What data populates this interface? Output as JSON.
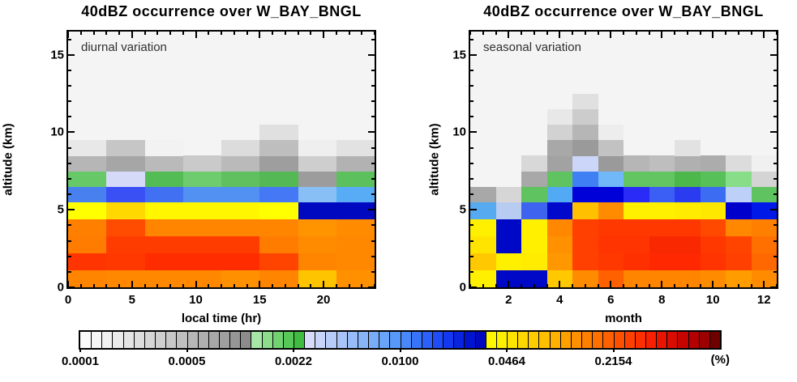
{
  "chart_data": [
    {
      "type": "heatmap",
      "title": "40dBZ occurrence over W_BAY_BNGL",
      "annotation": "diurnal variation",
      "xlabel": "local time (hr)",
      "ylabel": "altitude (km)",
      "xlim": [
        0,
        24
      ],
      "ylim": [
        0,
        16.5
      ],
      "background": "#f4f4f4",
      "ylabel_offset": 72,
      "x_bins": [
        0,
        3,
        6,
        9,
        12,
        15,
        18,
        21,
        24
      ],
      "x_ticks": {
        "major": [
          0,
          5,
          10,
          15,
          20
        ],
        "labels": [
          "0",
          "5",
          "10",
          "15",
          "20"
        ],
        "minor_step": 1,
        "range": [
          0,
          24
        ]
      },
      "y_ticks": {
        "major": [
          0,
          5,
          10,
          15
        ],
        "labels": [
          "0",
          "5",
          "10",
          "15"
        ],
        "minor_step": 1,
        "range": [
          0,
          16
        ]
      },
      "rows": [
        {
          "alt": [
            0,
            1.1
          ],
          "cells": [
            "#ff8400",
            "#ff8800",
            "#ff8800",
            "#ff8800",
            "#ff9000",
            "#ff8400",
            "#ffc400",
            "#ff9000"
          ]
        },
        {
          "alt": [
            1.1,
            2.2
          ],
          "cells": [
            "#ff3400",
            "#ff3800",
            "#ff2c00",
            "#ff2c00",
            "#ff2c00",
            "#ff4400",
            "#ff8400",
            "#ff8800"
          ]
        },
        {
          "alt": [
            2.2,
            3.3
          ],
          "cells": [
            "#ff7c00",
            "#ff3c00",
            "#ff3c00",
            "#ff3c00",
            "#ff3c00",
            "#ff7c00",
            "#ff8c00",
            "#ff8800"
          ]
        },
        {
          "alt": [
            3.3,
            4.4
          ],
          "cells": [
            "#ff8000",
            "#ff4c00",
            "#ff8400",
            "#ff8400",
            "#ff8400",
            "#ff8400",
            "#ff9400",
            "#ff8c00"
          ]
        },
        {
          "alt": [
            4.4,
            5.5
          ],
          "cells": [
            "#ffff00",
            "#ffd800",
            "#fff600",
            "#fff600",
            "#fff600",
            "#ffff00",
            "#0008c0",
            "#0008c0"
          ]
        },
        {
          "alt": [
            5.5,
            6.5
          ],
          "cells": [
            "#4880f0",
            "#3a50f5",
            "#4270f2",
            "#5290f2",
            "#5290f2",
            "#4478f5",
            "#88c0f5",
            "#58acf5"
          ]
        },
        {
          "alt": [
            6.5,
            7.5
          ],
          "cells": [
            "#66c866",
            "#d4daf8",
            "#54bc54",
            "#6ecc6e",
            "#60c060",
            "#54b854",
            "#9c9c9c",
            "#5cc05c"
          ]
        },
        {
          "alt": [
            7.5,
            8.5
          ],
          "cells": [
            "#b6b6b6",
            "#a6a6a6",
            "#bababa",
            "#cacaca",
            "#bababa",
            "#9e9e9e",
            "#cecece",
            "#b2b2b2"
          ]
        },
        {
          "alt": [
            8.5,
            9.5
          ],
          "cells": [
            "#e8e8e8",
            "#c6c6c6",
            "#f2f2f2",
            null,
            "#dcdcdc",
            "#bebebe",
            "#efefef",
            "#e2e2e2"
          ]
        },
        {
          "alt": [
            9.5,
            10.5
          ],
          "cells": [
            null,
            null,
            null,
            null,
            null,
            "#e0e0e0",
            null,
            null
          ]
        }
      ]
    },
    {
      "type": "heatmap",
      "title": "40dBZ occurrence over W_BAY_BNGL",
      "annotation": "seasonal variation",
      "xlabel": "month",
      "ylabel": "altitude (km)",
      "xlim": [
        0.5,
        12.5
      ],
      "ylim": [
        0,
        16.5
      ],
      "background": "#f4f4f4",
      "ylabel_offset": 42,
      "x_bins": [
        0.5,
        1.5,
        2.5,
        3.5,
        4.5,
        5.5,
        6.5,
        7.5,
        8.5,
        9.5,
        10.5,
        11.5,
        12.5
      ],
      "x_ticks": {
        "major": [
          2,
          4,
          6,
          8,
          10,
          12
        ],
        "labels": [
          "2",
          "4",
          "6",
          "8",
          "10",
          "12"
        ],
        "minor_step": 0.5,
        "range": [
          0.5,
          12.5
        ]
      },
      "y_ticks": {
        "major": [
          0,
          5,
          10,
          15
        ],
        "labels": [
          "0",
          "5",
          "10",
          "15"
        ],
        "minor_step": 1,
        "range": [
          0,
          16
        ]
      },
      "rows": [
        {
          "alt": [
            0,
            1.1
          ],
          "cells": [
            "#fff000",
            "#0008c8",
            "#0008c8",
            "#ffc800",
            "#ff8c00",
            "#ff6000",
            "#ff8400",
            "#ff8400",
            "#ff8400",
            "#ff8c00",
            "#ff9c00",
            "#ff8c00"
          ]
        },
        {
          "alt": [
            1.1,
            2.2
          ],
          "cells": [
            "#ffc800",
            "#fff000",
            "#ffec00",
            "#ff9800",
            "#ff4000",
            "#ff3800",
            "#ff3000",
            "#ff2800",
            "#ff2800",
            "#ff3400",
            "#ff4000",
            "#ff6800"
          ]
        },
        {
          "alt": [
            2.2,
            3.3
          ],
          "cells": [
            "#ffe400",
            "#0008c8",
            "#fff000",
            "#ff9000",
            "#ff4000",
            "#ff3400",
            "#ff3400",
            "#fa2800",
            "#fa2800",
            "#ff3800",
            "#ff4400",
            "#ff7000"
          ]
        },
        {
          "alt": [
            3.3,
            4.4
          ],
          "cells": [
            "#fff000",
            "#0008c8",
            "#fff000",
            "#ff8800",
            "#ff4000",
            "#ff3800",
            "#ff3800",
            "#ff3800",
            "#ff3800",
            "#ff4800",
            "#ff8800",
            "#ff8000"
          ]
        },
        {
          "alt": [
            4.4,
            5.5
          ],
          "cells": [
            "#55aaf0",
            "#b8ccf2",
            "#3e63ee",
            "#0008cc",
            "#ffc000",
            "#ff8c00",
            "#fff000",
            "#fff000",
            "#ffec00",
            "#ffe800",
            "#0000cc",
            "#0018e8"
          ]
        },
        {
          "alt": [
            5.5,
            6.5
          ],
          "cells": [
            "#a8a8a8",
            "#d6d6d6",
            "#5fc35f",
            "#52aaf5",
            "#0000d8",
            "#0000d8",
            "#2b2bf8",
            "#3b5ef5",
            "#2b3bf0",
            "#3c6cf2",
            "#bcd0f8",
            "#5fc35f"
          ]
        },
        {
          "alt": [
            6.5,
            7.5
          ],
          "cells": [
            null,
            null,
            "#a8a8a8",
            "#5fc35f",
            "#4080f5",
            "#70b8f8",
            "#62c562",
            "#62c562",
            "#4cb84c",
            "#58c058",
            "#88dd88",
            "#d4d4d4"
          ]
        },
        {
          "alt": [
            7.5,
            8.5
          ],
          "cells": [
            null,
            null,
            "#d8d8d8",
            "#a2a2a2",
            "#ccd6f8",
            "#9a9a9a",
            "#b6b6b6",
            "#bebebe",
            "#b0b0b0",
            "#acacac",
            "#dcdcdc",
            "#f0f0f0"
          ]
        },
        {
          "alt": [
            8.5,
            9.5
          ],
          "cells": [
            null,
            null,
            null,
            "#a8a8a8",
            "#9a9a9a",
            "#c2c2c2",
            null,
            null,
            "#e2e2e2",
            null,
            null,
            null
          ]
        },
        {
          "alt": [
            9.5,
            10.5
          ],
          "cells": [
            null,
            null,
            null,
            "#d2d2d2",
            "#b6b6b6",
            "#ededed",
            null,
            null,
            null,
            null,
            null,
            null
          ]
        },
        {
          "alt": [
            10.5,
            11.5
          ],
          "cells": [
            null,
            null,
            null,
            "#e8e8e8",
            "#cccccc",
            null,
            null,
            null,
            null,
            null,
            null,
            null
          ]
        },
        {
          "alt": [
            11.5,
            12.5
          ],
          "cells": [
            null,
            null,
            null,
            null,
            "#e0e0e0",
            null,
            null,
            null,
            null,
            null,
            null,
            null
          ]
        }
      ]
    },
    {
      "type": "colorbar",
      "orientation": "horizontal",
      "scale": "log",
      "range": [
        0.0001,
        1.0
      ],
      "tick_labels": [
        "0.0001",
        "0.0005",
        "0.0022",
        "0.0100",
        "0.0464",
        "0.2154"
      ],
      "unit_label": "(%)",
      "cells": [
        "#fbfbfb",
        "#f6f6f6",
        "#f1f1f1",
        "#ebebeb",
        "#e4e4e4",
        "#dddddd",
        "#d6d6d6",
        "#cfcfcf",
        "#c7c7c7",
        "#bfbfbf",
        "#b7b7b7",
        "#afafaf",
        "#a7a7a7",
        "#9f9f9f",
        "#969696",
        "#8c8c8c",
        "#a6e6a6",
        "#8cdc8c",
        "#72d272",
        "#58c858",
        "#40bc40",
        "#d8dcfa",
        "#c8d4fa",
        "#b8ccfa",
        "#a8c4f8",
        "#98bcf8",
        "#88b4f8",
        "#78acf8",
        "#68a4f8",
        "#5898f8",
        "#4888f8",
        "#3874f8",
        "#2c60f8",
        "#204cf8",
        "#1438f0",
        "#0824e0",
        "#0014d0",
        "#0008c0",
        "#fff800",
        "#fff000",
        "#ffe400",
        "#ffd800",
        "#ffcc00",
        "#ffc000",
        "#ffb000",
        "#ffa000",
        "#ff9000",
        "#ff8000",
        "#ff7000",
        "#ff6000",
        "#ff5000",
        "#ff4000",
        "#ff3000",
        "#f82000",
        "#e81400",
        "#d80c00",
        "#c80400",
        "#b40000",
        "#9c0000",
        "#6e0000"
      ]
    }
  ]
}
